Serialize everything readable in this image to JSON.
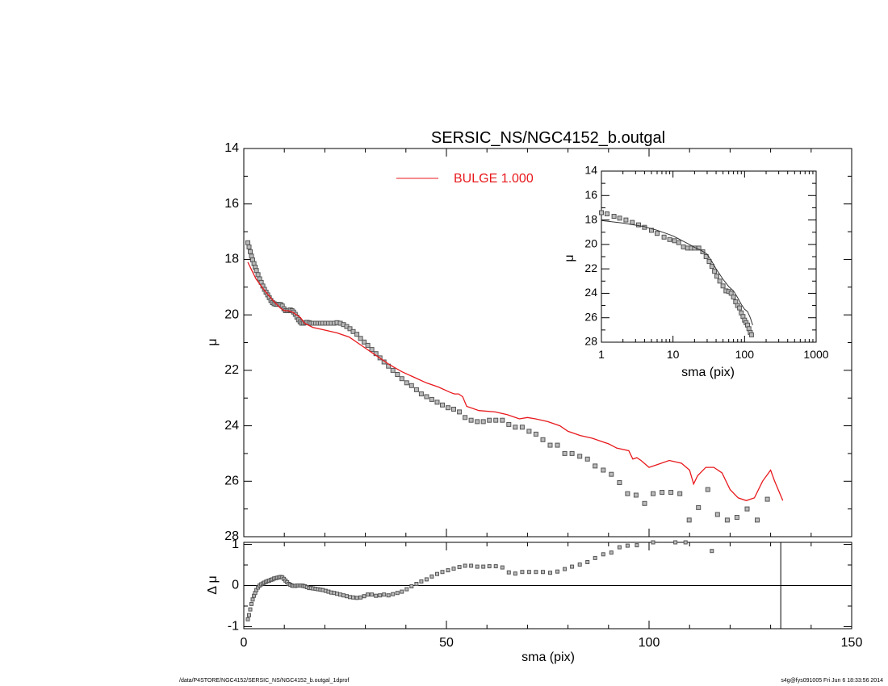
{
  "colors": {
    "model": "#e8181c",
    "data": "#555555",
    "axes": "#000000"
  },
  "footer": {
    "path": "/data/P4STORE/NGC4152/SERSIC_NS/NGC4152_b.outgal_1dprof",
    "stamp": "s4g@fys091005  Fri Jun  6 18:33:56 2014"
  },
  "chart_data": [
    {
      "id": "main",
      "type": "scatter",
      "title": "SERSIC_NS/NGC4152_b.outgal",
      "xlabel": "",
      "ylabel": "μ",
      "xlim": [
        0,
        150
      ],
      "ylim": [
        28,
        14
      ],
      "y_inverted": true,
      "xticks": [],
      "yticks": [
        14,
        16,
        18,
        20,
        22,
        24,
        26,
        28
      ],
      "legend": {
        "placement": "top-center",
        "entries": [
          {
            "label": "BULGE  1.000",
            "color": "#e8181c"
          }
        ]
      },
      "series": [
        {
          "name": "BULGE  1.000",
          "kind": "line",
          "x": [
            1,
            2,
            3,
            5,
            7,
            9,
            10,
            11,
            12,
            13,
            14,
            15,
            17,
            20,
            23,
            26,
            28,
            30,
            33,
            36,
            39,
            42,
            45,
            48,
            51,
            52,
            53,
            54,
            55,
            58,
            62,
            65,
            68,
            70,
            72,
            75,
            78,
            80,
            83,
            86,
            89,
            90,
            92,
            95,
            96,
            97,
            98,
            100,
            102,
            105,
            108,
            110,
            111,
            112,
            114,
            116,
            118,
            120,
            122,
            124,
            126,
            128,
            130,
            131,
            133
          ],
          "y": [
            18.1,
            18.4,
            18.7,
            19.1,
            19.45,
            19.75,
            19.85,
            19.85,
            19.9,
            20.0,
            20.1,
            20.3,
            20.45,
            20.55,
            20.65,
            20.8,
            21.0,
            21.2,
            21.5,
            21.8,
            22.05,
            22.25,
            22.45,
            22.6,
            22.8,
            22.85,
            22.85,
            22.95,
            23.3,
            23.45,
            23.5,
            23.6,
            23.75,
            23.7,
            23.75,
            23.85,
            24.0,
            24.2,
            24.35,
            24.45,
            24.6,
            24.65,
            24.8,
            24.9,
            25.2,
            25.15,
            25.25,
            25.5,
            25.4,
            25.25,
            25.35,
            25.6,
            26.1,
            25.8,
            25.5,
            25.5,
            25.7,
            26.3,
            26.6,
            26.7,
            26.6,
            26.0,
            25.6,
            26.0,
            26.7
          ]
        },
        {
          "name": "",
          "kind": "markers",
          "x": [
            1.0,
            1.3,
            1.6,
            1.9,
            2.2,
            2.5,
            2.8,
            3.1,
            3.5,
            3.9,
            4.3,
            4.7,
            5.1,
            5.5,
            5.9,
            6.3,
            6.7,
            7.1,
            7.5,
            7.9,
            8.3,
            8.7,
            9.1,
            9.5,
            9.9,
            10.3,
            10.7,
            11.1,
            11.5,
            11.9,
            12.3,
            12.7,
            13.1,
            13.5,
            13.9,
            14.3,
            14.7,
            15.1,
            15.6,
            16.1,
            16.6,
            17.1,
            17.7,
            18.3,
            18.9,
            19.5,
            20.2,
            20.9,
            21.6,
            22.3,
            23.0,
            23.8,
            24.6,
            25.4,
            26.2,
            27.0,
            27.9,
            28.8,
            29.7,
            30.6,
            31.6,
            32.6,
            33.6,
            34.6,
            35.7,
            36.8,
            37.9,
            39.0,
            40.2,
            41.4,
            42.6,
            43.8,
            45.1,
            46.4,
            47.7,
            49.0,
            50.4,
            51.8,
            53.2,
            54.6,
            56.1,
            57.6,
            59.1,
            60.6,
            62.2,
            63.8,
            65.4,
            67.0,
            68.7,
            70.4,
            72.1,
            73.8,
            75.6,
            77.4,
            79.2,
            81.0,
            82.9,
            84.8,
            86.7,
            88.7,
            90.7,
            92.7,
            94.7,
            96.8,
            98.9,
            101.0,
            103.2,
            105.4,
            107.6,
            109.9,
            112.2,
            114.5,
            116.9,
            119.3,
            121.7,
            124.2,
            126.7,
            129.2
          ],
          "y": [
            17.4,
            17.55,
            17.72,
            17.88,
            18.02,
            18.15,
            18.28,
            18.4,
            18.55,
            18.7,
            18.83,
            18.96,
            19.08,
            19.18,
            19.28,
            19.38,
            19.48,
            19.56,
            19.6,
            19.62,
            19.62,
            19.62,
            19.63,
            19.68,
            19.78,
            19.85,
            19.85,
            19.84,
            19.82,
            19.85,
            19.9,
            19.98,
            20.08,
            20.18,
            20.25,
            20.3,
            20.3,
            20.28,
            20.27,
            20.28,
            20.3,
            20.3,
            20.3,
            20.3,
            20.3,
            20.3,
            20.3,
            20.3,
            20.3,
            20.3,
            20.28,
            20.3,
            20.35,
            20.42,
            20.5,
            20.6,
            20.7,
            20.85,
            20.98,
            21.1,
            21.25,
            21.4,
            21.55,
            21.7,
            21.85,
            22.0,
            22.15,
            22.3,
            22.45,
            22.55,
            22.7,
            22.85,
            22.95,
            23.05,
            23.15,
            23.25,
            23.35,
            23.4,
            23.5,
            23.7,
            23.8,
            23.85,
            23.85,
            23.8,
            23.8,
            23.8,
            23.95,
            24.05,
            24.05,
            24.2,
            24.3,
            24.5,
            24.7,
            24.7,
            25.0,
            25.0,
            25.1,
            25.2,
            25.45,
            25.6,
            25.75,
            26.05,
            26.45,
            26.5,
            26.8,
            26.45,
            26.4,
            26.4,
            26.45,
            27.4,
            26.95,
            26.3,
            27.2,
            27.4,
            27.3,
            27.0,
            27.4,
            26.65
          ]
        }
      ]
    },
    {
      "id": "inset",
      "type": "scatter",
      "title": "",
      "xlabel": "sma (pix)",
      "ylabel": "μ",
      "x_scale": "log",
      "xlim": [
        1,
        1000
      ],
      "ylim": [
        28,
        14
      ],
      "y_inverted": true,
      "xticks": [
        1,
        10,
        100,
        1000
      ],
      "yticks": [
        14,
        16,
        18,
        20,
        22,
        24,
        26,
        28
      ],
      "series": [
        {
          "name": "",
          "kind": "line",
          "x": [
            1,
            2,
            4,
            6,
            8,
            10,
            12,
            14,
            17,
            20,
            25,
            30,
            35,
            40,
            45,
            50,
            60,
            70,
            80,
            90,
            100,
            110,
            120,
            130
          ],
          "y": [
            18.05,
            18.25,
            18.55,
            18.85,
            19.1,
            19.3,
            19.55,
            19.75,
            20.0,
            20.25,
            20.5,
            20.8,
            21.4,
            22.0,
            22.45,
            22.85,
            23.45,
            23.8,
            24.35,
            24.9,
            25.3,
            25.5,
            26.0,
            26.6
          ]
        },
        {
          "name": "",
          "kind": "markers",
          "x": [
            1.0,
            1.2,
            1.5,
            1.8,
            2.2,
            2.7,
            3.3,
            4.0,
            5.0,
            6.0,
            7.5,
            9.0,
            10.5,
            12.0,
            14.0,
            16.0,
            18.0,
            20.0,
            23.0,
            26.0,
            29.0,
            32.0,
            35.0,
            38.0,
            41.0,
            45.0,
            50.0,
            55.0,
            60.0,
            65.0,
            70.0,
            75.0,
            80.0,
            85.0,
            90.0,
            95.0,
            100.0,
            105.0,
            110.0,
            115.0,
            120.0,
            125.0
          ],
          "y": [
            17.4,
            17.5,
            17.7,
            17.85,
            18.0,
            18.2,
            18.4,
            18.6,
            18.85,
            19.1,
            19.4,
            19.6,
            19.7,
            19.85,
            20.2,
            20.3,
            20.3,
            20.3,
            20.3,
            20.6,
            21.0,
            21.4,
            21.8,
            22.2,
            22.6,
            23.0,
            23.4,
            23.8,
            23.85,
            24.0,
            24.3,
            24.7,
            25.0,
            25.2,
            25.6,
            25.9,
            26.2,
            26.4,
            26.6,
            26.9,
            27.2,
            27.4
          ]
        }
      ]
    },
    {
      "id": "residual",
      "type": "scatter",
      "title": "",
      "xlabel": "sma (pix)",
      "ylabel": "Δ μ",
      "xlim": [
        0,
        150
      ],
      "ylim": [
        -1.05,
        1.05
      ],
      "xticks": [
        0,
        50,
        100,
        150
      ],
      "yticks": [
        -1,
        0,
        1
      ],
      "reference_line_y": 0,
      "vertical_line_x": 132.5,
      "series": [
        {
          "name": "",
          "kind": "markers",
          "x": [
            1.0,
            1.3,
            1.6,
            1.9,
            2.2,
            2.5,
            2.8,
            3.1,
            3.5,
            3.9,
            4.3,
            4.7,
            5.1,
            5.5,
            5.9,
            6.3,
            6.7,
            7.1,
            7.5,
            7.9,
            8.3,
            8.7,
            9.1,
            9.5,
            9.9,
            10.3,
            10.7,
            11.1,
            11.5,
            11.9,
            12.3,
            12.7,
            13.1,
            13.5,
            13.9,
            14.3,
            14.7,
            15.1,
            15.6,
            16.1,
            16.6,
            17.1,
            17.7,
            18.3,
            18.9,
            19.5,
            20.2,
            20.9,
            21.6,
            22.3,
            23.0,
            23.8,
            24.6,
            25.4,
            26.2,
            27.0,
            27.9,
            28.8,
            29.7,
            30.6,
            31.6,
            32.6,
            33.6,
            34.6,
            35.7,
            36.8,
            37.9,
            39.0,
            40.2,
            41.4,
            42.6,
            43.8,
            45.1,
            46.4,
            47.7,
            49.0,
            50.4,
            51.8,
            53.2,
            54.6,
            56.1,
            57.6,
            59.1,
            60.6,
            62.2,
            63.8,
            65.4,
            67.0,
            68.7,
            70.4,
            72.1,
            73.8,
            75.6,
            77.4,
            79.2,
            81.0,
            82.9,
            84.8,
            86.7,
            88.7,
            90.7,
            92.7,
            94.7,
            97.0,
            101.0,
            106.5,
            109.0,
            115.5,
            125.5
          ],
          "y": [
            -0.82,
            -0.72,
            -0.58,
            -0.45,
            -0.34,
            -0.25,
            -0.18,
            -0.11,
            -0.05,
            0.0,
            0.03,
            0.05,
            0.07,
            0.09,
            0.11,
            0.12,
            0.14,
            0.15,
            0.17,
            0.18,
            0.19,
            0.2,
            0.21,
            0.2,
            0.16,
            0.12,
            0.08,
            0.04,
            0.02,
            0.0,
            -0.01,
            -0.01,
            0.0,
            0.0,
            0.0,
            0.0,
            -0.01,
            -0.02,
            -0.04,
            -0.06,
            -0.06,
            -0.07,
            -0.08,
            -0.09,
            -0.1,
            -0.11,
            -0.13,
            -0.15,
            -0.17,
            -0.18,
            -0.2,
            -0.22,
            -0.24,
            -0.26,
            -0.28,
            -0.29,
            -0.3,
            -0.29,
            -0.26,
            -0.22,
            -0.22,
            -0.25,
            -0.24,
            -0.22,
            -0.24,
            -0.21,
            -0.18,
            -0.15,
            -0.09,
            -0.02,
            0.04,
            0.1,
            0.15,
            0.22,
            0.28,
            0.33,
            0.37,
            0.41,
            0.45,
            0.48,
            0.48,
            0.46,
            0.46,
            0.47,
            0.47,
            0.44,
            0.32,
            0.29,
            0.33,
            0.33,
            0.33,
            0.33,
            0.31,
            0.34,
            0.4,
            0.46,
            0.51,
            0.57,
            0.67,
            0.76,
            0.8,
            0.93,
            0.97,
            0.98,
            1.05,
            1.05,
            1.05,
            0.84,
            1.1
          ]
        }
      ]
    }
  ]
}
